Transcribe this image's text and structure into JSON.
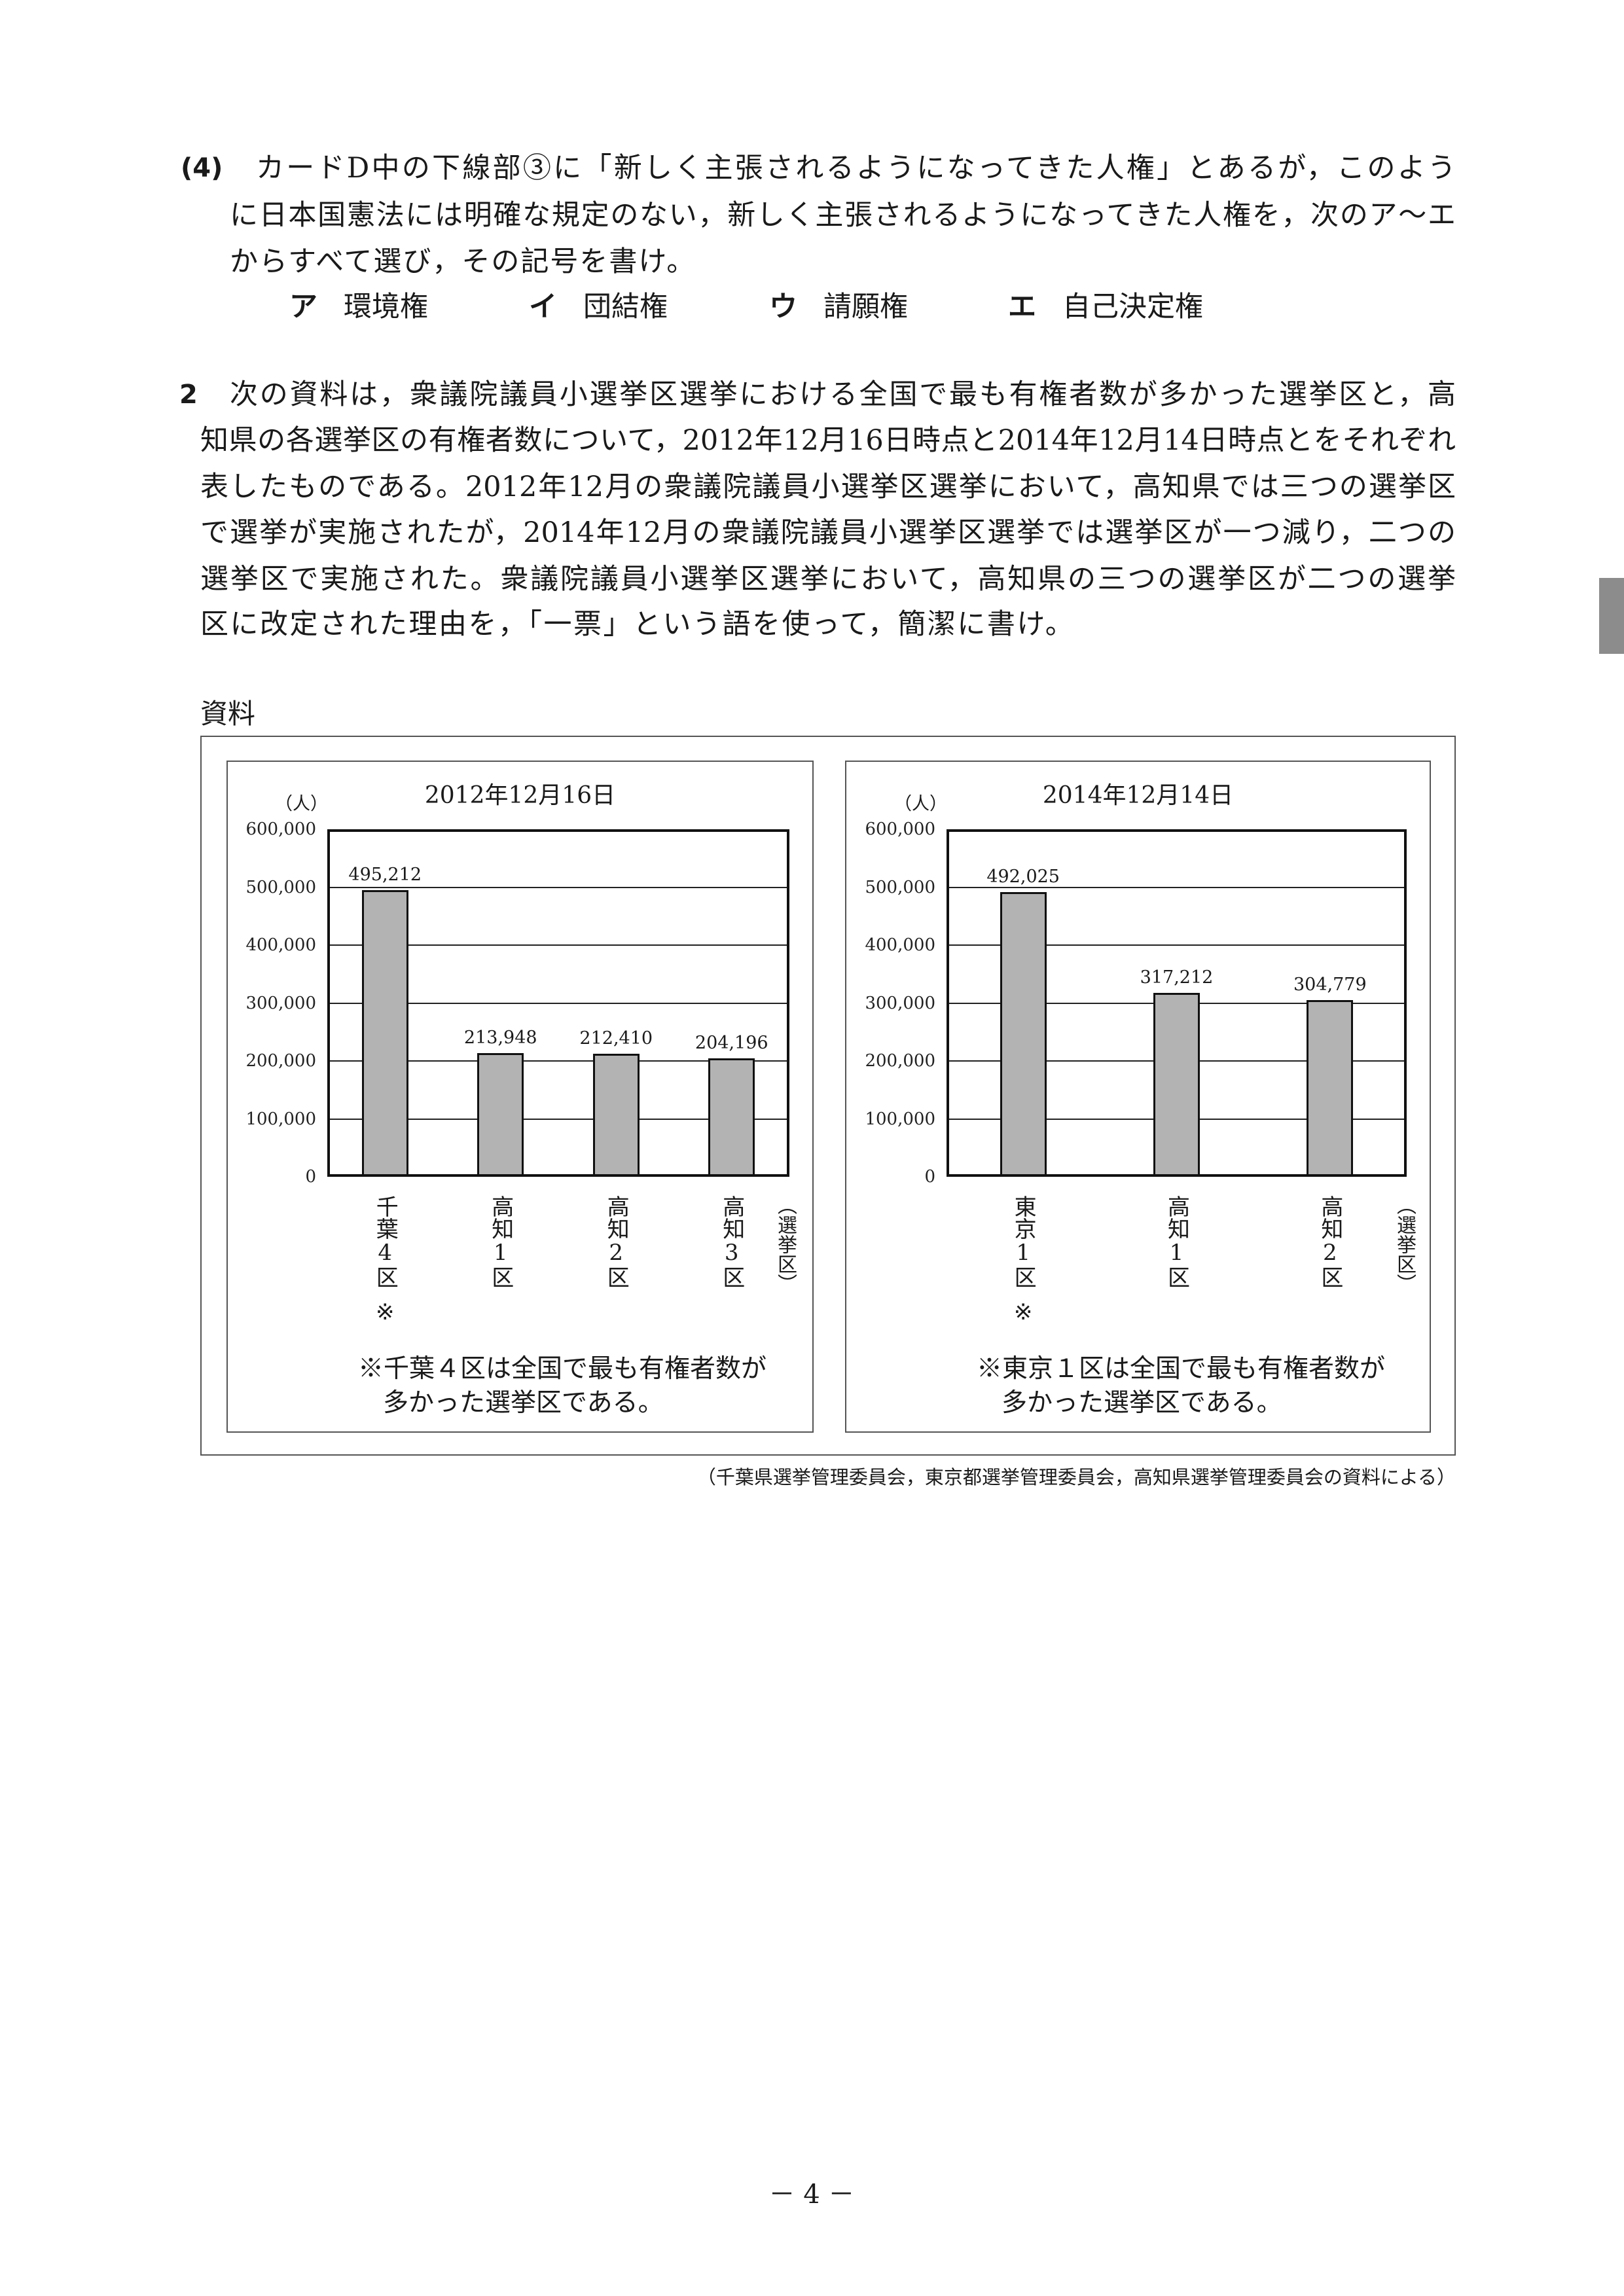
{
  "question4": {
    "number": "(4)",
    "lines": [
      "カードD中の下線部③に「新しく主張されるようになってきた人権」とあるが，このよう",
      "に日本国憲法には明確な規定のない，新しく主張されるようになってきた人権を，次のア～エ",
      "からすべて選び，その記号を書け。"
    ],
    "choices": [
      {
        "mark": "ア",
        "text": "環境権"
      },
      {
        "mark": "イ",
        "text": "団結権"
      },
      {
        "mark": "ウ",
        "text": "請願権"
      },
      {
        "mark": "エ",
        "text": "自己決定権"
      }
    ]
  },
  "question2": {
    "number": "2",
    "lines": [
      "次の資料は，衆議院議員小選挙区選挙における全国で最も有権者数が多かった選挙区と，高",
      "知県の各選挙区の有権者数について，2012年12月16日時点と2014年12月14日時点とをそれぞれ",
      "表したものである。2012年12月の衆議院議員小選挙区選挙において，高知県では三つの選挙区",
      "で選挙が実施されたが，2014年12月の衆議院議員小選挙区選挙では選挙区が一つ減り，二つの",
      "選挙区で実施された。衆議院議員小選挙区選挙において，高知県の三つの選挙区が二つの選挙",
      "区に改定された理由を，「一票」という語を使って，簡潔に書け。"
    ]
  },
  "material_label": "資料",
  "chart_data": [
    {
      "type": "bar",
      "title": "2012年12月16日",
      "ylabel": "（人）",
      "xlabel": "（選挙区）",
      "categories": [
        "千葉4区",
        "高知1区",
        "高知2区",
        "高知3区"
      ],
      "category_markers": [
        "※",
        "",
        "",
        ""
      ],
      "values": [
        495212,
        213948,
        212410,
        204196
      ],
      "data_labels": [
        "495,212",
        "213,948",
        "212,410",
        "204,196"
      ],
      "ylim": [
        0,
        600000
      ],
      "yticks": [
        "0",
        "100,000",
        "200,000",
        "300,000",
        "400,000",
        "500,000",
        "600,000"
      ],
      "grid": true,
      "bar_color": "#b3b3b3",
      "note": [
        "※千葉４区は全国で最も有権者数が",
        "多かった選挙区である。"
      ]
    },
    {
      "type": "bar",
      "title": "2014年12月14日",
      "ylabel": "（人）",
      "xlabel": "（選挙区）",
      "categories": [
        "東京1区",
        "高知1区",
        "高知2区"
      ],
      "category_markers": [
        "※",
        "",
        ""
      ],
      "values": [
        492025,
        317212,
        304779
      ],
      "data_labels": [
        "492,025",
        "317,212",
        "304,779"
      ],
      "ylim": [
        0,
        600000
      ],
      "yticks": [
        "0",
        "100,000",
        "200,000",
        "300,000",
        "400,000",
        "500,000",
        "600,000"
      ],
      "grid": true,
      "bar_color": "#b3b3b3",
      "note": [
        "※東京１区は全国で最も有権者数が",
        "多かった選挙区である。"
      ]
    }
  ],
  "source": "（千葉県選挙管理委員会，東京都選挙管理委員会，高知県選挙管理委員会の資料による）",
  "page_number": "－ 4 －"
}
